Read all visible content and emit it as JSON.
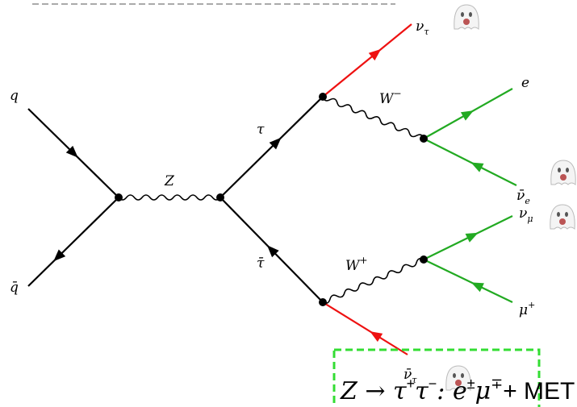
{
  "labels": {
    "q": "q",
    "qbar": "q̄",
    "z": "Z",
    "tau": "τ",
    "taubar": "τ̄",
    "w_minus": {
      "base": "W",
      "sup": "−"
    },
    "w_plus": {
      "base": "W",
      "sup": "+"
    },
    "nu_tau": {
      "base": "ν",
      "sub": "τ"
    },
    "e": "e",
    "nubar_e": {
      "base": "ν̄",
      "sub": "e"
    },
    "nu_mu": {
      "base": "ν",
      "sub": "μ"
    },
    "mu_plus": {
      "base": "μ",
      "sup": "+"
    },
    "nubar_tau": {
      "base": "ν̄",
      "sub": "τ"
    }
  },
  "caption": [
    "Z → τ",
    "+",
    "τ",
    "−",
    ": e",
    "±",
    "μ",
    "∓",
    "+ MET"
  ]
}
